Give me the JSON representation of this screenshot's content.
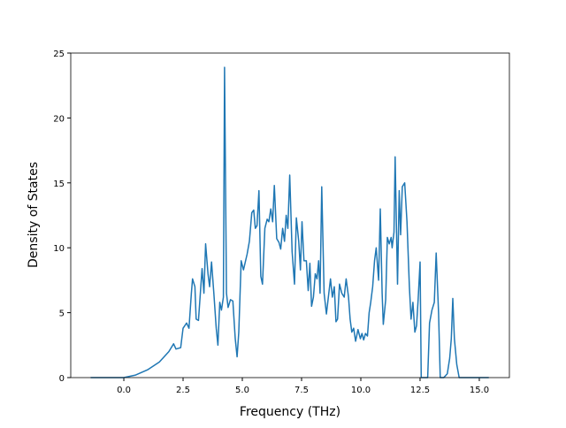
{
  "chart_data": {
    "type": "line",
    "xlabel": "Frequency (THz)",
    "ylabel": "Density of States",
    "xlim": [
      -2.24,
      16.27
    ],
    "ylim": [
      0,
      25
    ],
    "xticks": [
      {
        "value": 0,
        "label": "0.0"
      },
      2.5,
      {
        "value": 5,
        "label": "5.0"
      },
      7.5,
      {
        "value": 10,
        "label": "10.0"
      },
      12.5,
      {
        "value": 15,
        "label": "15.0"
      }
    ],
    "yticks": [
      0,
      5,
      10,
      15,
      20,
      25
    ],
    "series": [
      {
        "color": "#1f77b4",
        "x": [
          -1.4,
          0,
          0.5,
          1.0,
          1.5,
          1.9,
          2.1,
          2.2,
          2.4,
          2.5,
          2.65,
          2.75,
          2.85,
          2.9,
          3.0,
          3.05,
          3.15,
          3.3,
          3.38,
          3.45,
          3.55,
          3.62,
          3.7,
          3.8,
          3.9,
          3.97,
          4.05,
          4.12,
          4.2,
          4.25,
          4.33,
          4.4,
          4.5,
          4.6,
          4.7,
          4.78,
          4.85,
          4.95,
          5.05,
          5.2,
          5.3,
          5.4,
          5.48,
          5.55,
          5.62,
          5.7,
          5.78,
          5.85,
          5.95,
          6.05,
          6.12,
          6.2,
          6.28,
          6.35,
          6.45,
          6.55,
          6.62,
          6.7,
          6.78,
          6.85,
          6.92,
          7.0,
          7.1,
          7.2,
          7.28,
          7.38,
          7.45,
          7.52,
          7.6,
          7.7,
          7.78,
          7.85,
          7.92,
          8.0,
          8.08,
          8.15,
          8.22,
          8.28,
          8.35,
          8.45,
          8.55,
          8.65,
          8.72,
          8.8,
          8.88,
          8.95,
          9.02,
          9.1,
          9.2,
          9.3,
          9.38,
          9.48,
          9.55,
          9.62,
          9.7,
          9.78,
          9.88,
          9.98,
          10.05,
          10.12,
          10.2,
          10.28,
          10.35,
          10.42,
          10.5,
          10.58,
          10.65,
          10.75,
          10.82,
          10.9,
          10.95,
          11.05,
          11.12,
          11.2,
          11.28,
          11.32,
          11.4,
          11.45,
          11.55,
          11.62,
          11.68,
          11.75,
          11.85,
          11.95,
          12.05,
          12.12,
          12.2,
          12.28,
          12.35,
          12.42,
          12.5,
          12.55,
          12.7,
          12.82,
          12.9,
          13.0,
          13.1,
          13.18,
          13.28,
          13.35,
          13.5,
          13.65,
          13.75,
          13.82,
          13.88,
          13.95,
          14.05,
          14.15,
          15.4
        ],
        "values": [
          0,
          0,
          0.2,
          0.6,
          1.2,
          2.0,
          2.6,
          2.2,
          2.3,
          3.8,
          4.2,
          3.8,
          6.5,
          7.6,
          7.0,
          4.5,
          4.4,
          8.4,
          6.5,
          10.3,
          8.0,
          7.0,
          8.9,
          6.5,
          3.8,
          2.5,
          5.8,
          5.2,
          6.2,
          23.9,
          6.5,
          5.4,
          6.0,
          5.9,
          3.0,
          1.6,
          3.5,
          9.0,
          8.3,
          9.5,
          10.5,
          12.7,
          12.9,
          11.5,
          11.7,
          14.4,
          7.8,
          7.2,
          11.5,
          12.2,
          12.0,
          13.0,
          12.0,
          14.8,
          10.7,
          10.4,
          9.9,
          11.5,
          10.5,
          12.5,
          11.5,
          15.6,
          9.7,
          7.2,
          12.3,
          10.5,
          8.3,
          12.0,
          9.0,
          9.0,
          6.7,
          8.8,
          5.5,
          6.2,
          8.0,
          7.6,
          9.0,
          6.5,
          14.7,
          6.5,
          4.9,
          6.5,
          7.6,
          6.2,
          7.0,
          4.3,
          4.5,
          7.2,
          6.5,
          6.2,
          7.6,
          6.2,
          4.5,
          3.5,
          3.8,
          2.8,
          3.7,
          3.0,
          3.4,
          2.9,
          3.4,
          3.2,
          5.0,
          5.8,
          7.0,
          9.0,
          10.0,
          7.5,
          13.0,
          6.5,
          4.1,
          6.0,
          10.8,
          10.3,
          10.8,
          10.0,
          11.2,
          17.0,
          7.2,
          14.4,
          11.0,
          14.7,
          15.0,
          12.0,
          7.0,
          4.5,
          5.8,
          3.5,
          4.0,
          6.0,
          8.9,
          0,
          0,
          0,
          4.2,
          5.2,
          5.8,
          9.6,
          5.0,
          0,
          0,
          0.3,
          1.5,
          3.0,
          6.1,
          3.0,
          1.0,
          0,
          0
        ]
      }
    ]
  }
}
